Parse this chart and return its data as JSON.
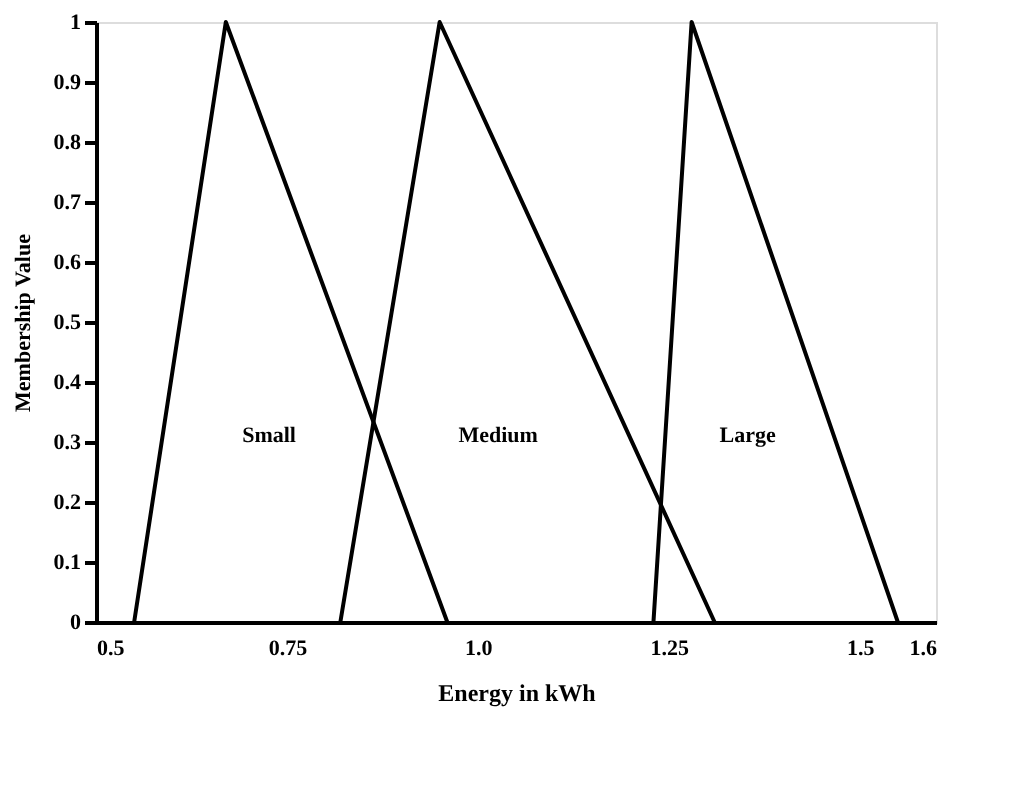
{
  "chart_data": {
    "type": "line",
    "xlabel": "Energy in kWh",
    "ylabel": "Membership Value",
    "xlim": [
      0.5,
      1.6
    ],
    "xticks": [
      0.5,
      0.75,
      {
        "value": 1.0,
        "label": "1.0"
      },
      1.25,
      1.5,
      1.6
    ],
    "ylim": [
      0,
      1
    ],
    "yticks": [
      0,
      0.1,
      0.2,
      0.3,
      0.4,
      0.5,
      0.6,
      0.7,
      0.8,
      0.9,
      1
    ],
    "grid": false,
    "marker": "none",
    "line_style": "solid",
    "series": [
      {
        "color": "#000000",
        "x": [
          0.55,
          0.67,
          0.96
        ],
        "values": [
          0,
          1,
          0
        ]
      },
      {
        "color": "#000000",
        "x": [
          0.82,
          0.95,
          1.31
        ],
        "values": [
          0,
          1,
          0
        ]
      },
      {
        "color": "#000000",
        "x": [
          1.23,
          1.28,
          1.55
        ],
        "values": [
          0,
          1,
          0
        ]
      }
    ],
    "annotations": [
      "Small",
      "Medium",
      "Large"
    ]
  }
}
